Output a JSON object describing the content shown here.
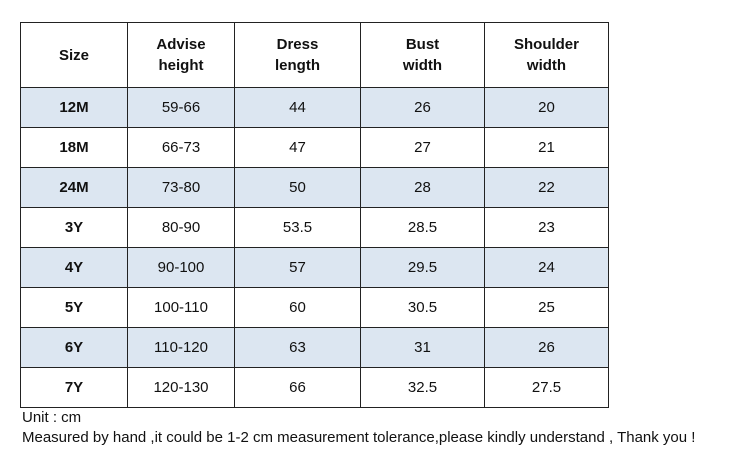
{
  "table": {
    "header": [
      "Size",
      "Advise height",
      "Dress length",
      "Bust width",
      "Shoulder width"
    ],
    "rows": [
      [
        "12M",
        "59-66",
        "44",
        "26",
        "20"
      ],
      [
        "18M",
        "66-73",
        "47",
        "27",
        "21"
      ],
      [
        "24M",
        "73-80",
        "50",
        "28",
        "22"
      ],
      [
        "3Y",
        "80-90",
        "53.5",
        "28.5",
        "23"
      ],
      [
        "4Y",
        "90-100",
        "57",
        "29.5",
        "24"
      ],
      [
        "5Y",
        "100-110",
        "60",
        "30.5",
        "25"
      ],
      [
        "6Y",
        "110-120",
        "63",
        "31",
        "26"
      ],
      [
        "7Y",
        "120-130",
        "66",
        "32.5",
        "27.5"
      ]
    ]
  },
  "notes": {
    "unit": "Unit : cm",
    "tolerance": "Measured by hand ,it could be 1-2 cm measurement tolerance,please kindly understand , Thank you !"
  }
}
